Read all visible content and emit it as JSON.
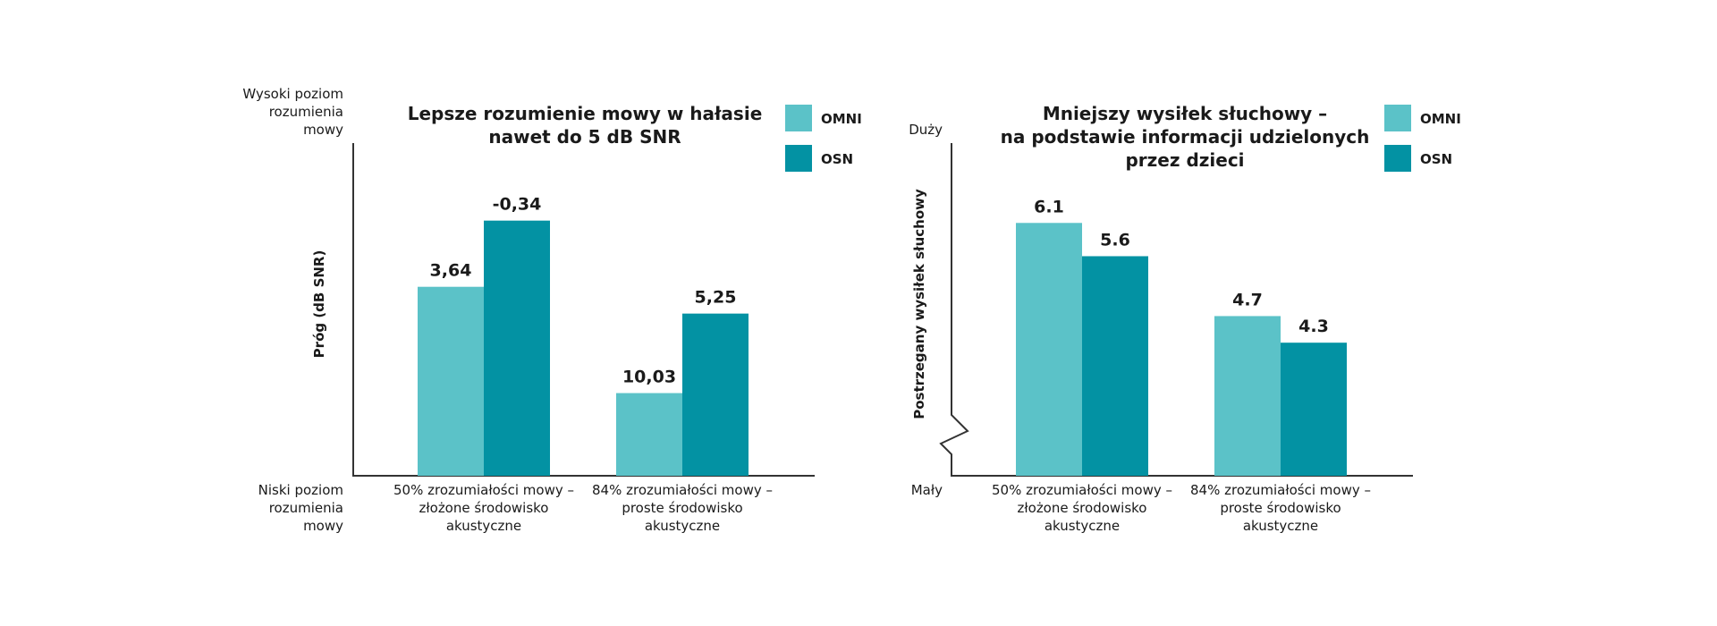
{
  "colors": {
    "omni": "#5BC2C8",
    "osn": "#0392A3",
    "axis": "#333333"
  },
  "chart_data": [
    {
      "type": "bar",
      "title_lines": [
        "Lepsze rozumienie mowy w hałasie",
        "nawet do 5 dB SNR"
      ],
      "ylabel": "Próg (dB SNR)",
      "y_top_label": [
        "Wysoki poziom",
        "rozumienia",
        "mowy"
      ],
      "y_bottom_label": [
        "Niski poziom",
        "rozumienia",
        "mowy"
      ],
      "inverted_axis": true,
      "ylim": [
        15,
        -5
      ],
      "categories": [
        [
          "50% zrozumiałości mowy –",
          "złożone środowisko",
          "akustyczne"
        ],
        [
          "84% zrozumiałości mowy –",
          "proste środowisko",
          "akustyczne"
        ]
      ],
      "series": [
        {
          "name": "OMNI",
          "values": [
            3.64,
            10.03
          ],
          "labels": [
            "3,64",
            "10,03"
          ]
        },
        {
          "name": "OSN",
          "values": [
            -0.34,
            5.25
          ],
          "labels": [
            "-0,34",
            "5,25"
          ]
        }
      ],
      "legend": "top-right"
    },
    {
      "type": "bar",
      "title_lines": [
        "Mniejszy wysiłek słuchowy –",
        "na podstawie informacji udzielonych",
        "przez dzieci"
      ],
      "ylabel": "Postrzegany wysiłek słuchowy",
      "y_top_label": [
        "Duży"
      ],
      "y_bottom_label": [
        "Mały"
      ],
      "axis_break": true,
      "ylim": [
        2.3,
        7.3
      ],
      "categories": [
        [
          "50% zrozumiałości mowy –",
          "złożone środowisko",
          "akustyczne"
        ],
        [
          "84% zrozumiałości mowy –",
          "proste środowisko",
          "akustyczne"
        ]
      ],
      "series": [
        {
          "name": "OMNI",
          "values": [
            6.1,
            4.7
          ],
          "labels": [
            "6.1",
            "4.7"
          ]
        },
        {
          "name": "OSN",
          "values": [
            5.6,
            4.3
          ],
          "labels": [
            "5.6",
            "4.3"
          ]
        }
      ],
      "legend": "top-right"
    }
  ]
}
